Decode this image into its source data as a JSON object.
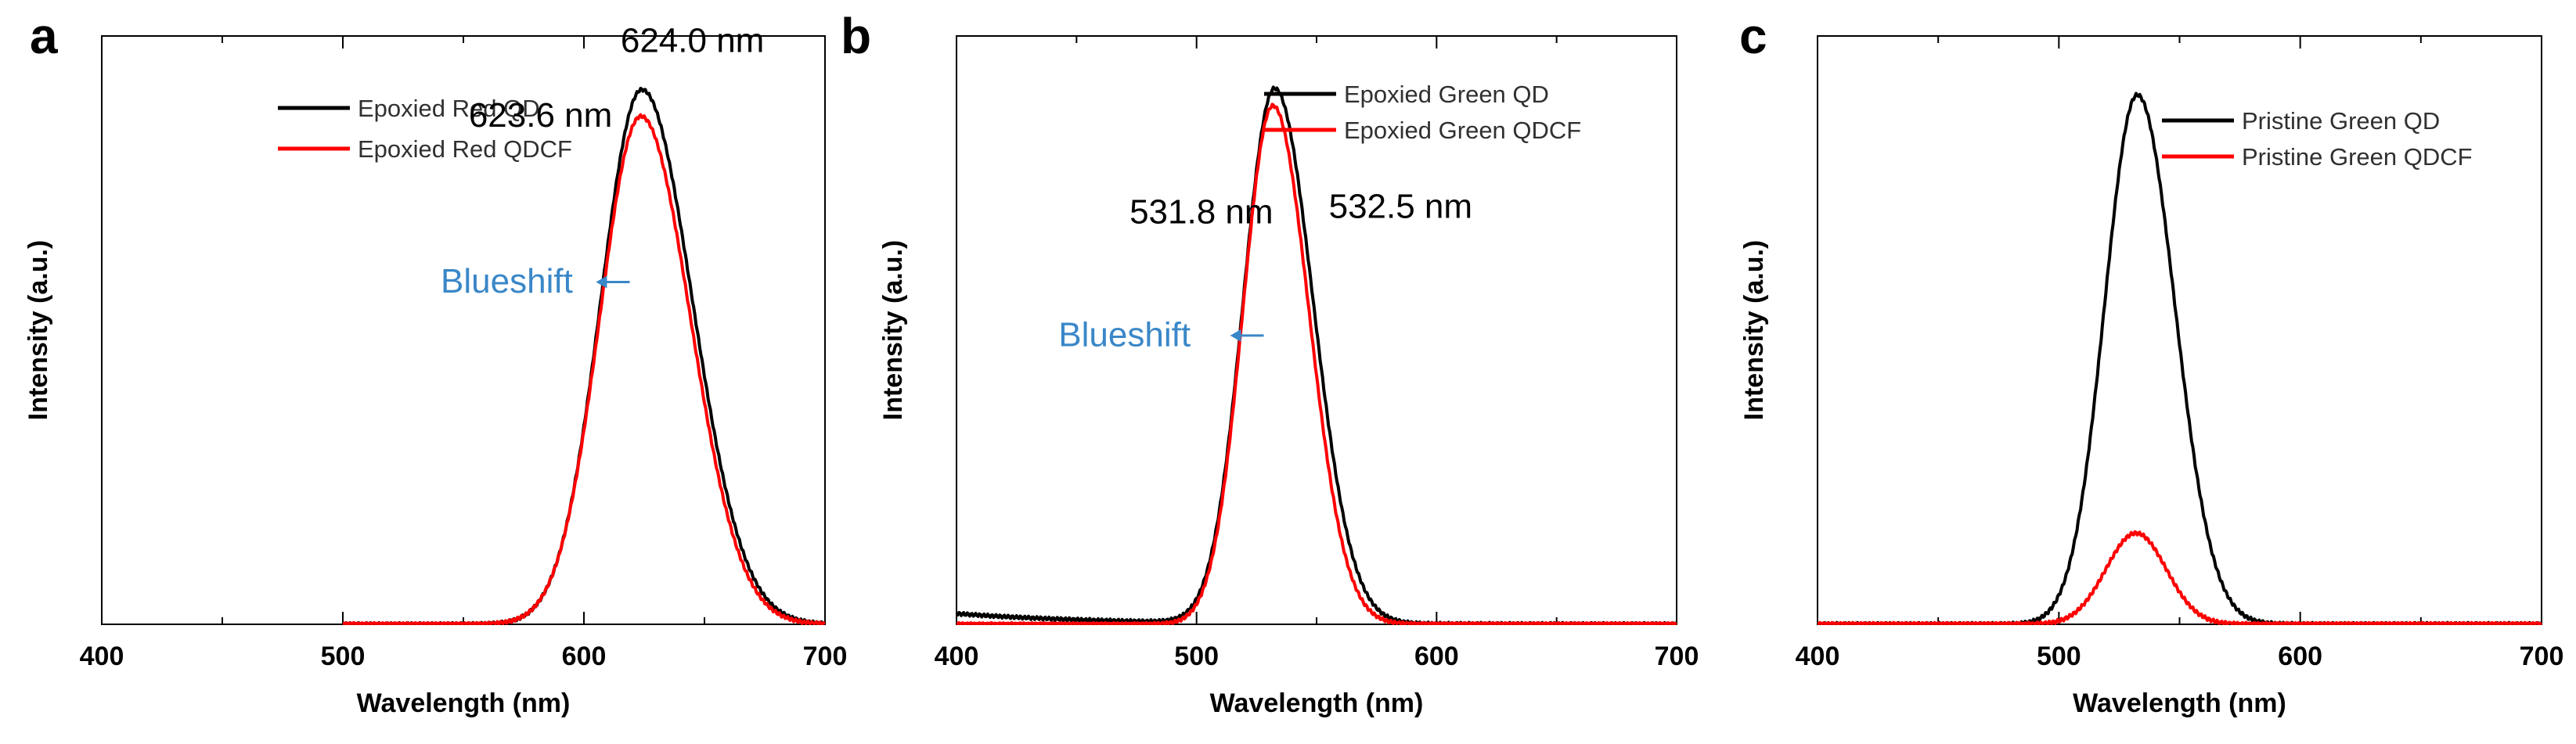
{
  "chart_data": [
    {
      "type": "line",
      "panel": "a",
      "xlabel": "Wavelength (nm)",
      "ylabel": "Intensity (a.u.)",
      "xlim": [
        400,
        700
      ],
      "xticks": [
        "400",
        "500",
        "600",
        "700"
      ],
      "ylim": [
        0,
        1.1
      ],
      "series": [
        {
          "name": "Epoxied Red QD",
          "color": "#000000",
          "peak_nm": 624.0,
          "peak": 1.0,
          "sigma_left": 17,
          "sigma_right": 21,
          "baseline": 0.0,
          "x_start": 500
        },
        {
          "name": "Epoxied Red QDCF",
          "color": "#ff0000",
          "peak_nm": 623.6,
          "peak": 0.95,
          "sigma_left": 17,
          "sigma_right": 20.5,
          "baseline": 0.0,
          "x_start": 500
        }
      ],
      "annotations": [
        {
          "text": "624.0 nm",
          "x_nm": 645,
          "y": 1.07
        },
        {
          "text": "623.6 nm",
          "x_nm": 582,
          "y": 0.93
        },
        {
          "text": "Blueshift",
          "x_nm": 568,
          "y": 0.62,
          "style": "blue"
        }
      ],
      "arrow": {
        "from_nm": 619,
        "to_nm": 605,
        "y": 0.64,
        "color": "#3a87c8"
      }
    },
    {
      "type": "line",
      "panel": "b",
      "xlabel": "Wavelength (nm)",
      "ylabel": "Intensity (a.u.)",
      "xlim": [
        400,
        700
      ],
      "xticks": [
        "400",
        "500",
        "600",
        "700"
      ],
      "ylim": [
        0,
        1.1
      ],
      "series": [
        {
          "name": "Epoxied Green QD",
          "color": "#000000",
          "peak_nm": 532.5,
          "peak": 1.0,
          "sigma_left": 13,
          "sigma_right": 16,
          "baseline": 0.02,
          "x_start": 400
        },
        {
          "name": "Epoxied Green QDCF",
          "color": "#ff0000",
          "peak_nm": 531.8,
          "peak": 0.97,
          "sigma_left": 12.5,
          "sigma_right": 15,
          "baseline": 0.0,
          "x_start": 400
        }
      ],
      "annotations": [
        {
          "text": "531.8 nm",
          "x_nm": 502,
          "y": 0.75
        },
        {
          "text": "532.5 nm",
          "x_nm": 585,
          "y": 0.76
        },
        {
          "text": "Blueshift",
          "x_nm": 470,
          "y": 0.52,
          "style": "blue"
        }
      ],
      "arrow": {
        "from_nm": 528,
        "to_nm": 514,
        "y": 0.54,
        "color": "#3a87c8"
      }
    },
    {
      "type": "line",
      "panel": "c",
      "xlabel": "Wavelength (nm)",
      "ylabel": "Intensity (a.u.)",
      "xlim": [
        400,
        700
      ],
      "xticks": [
        "400",
        "500",
        "600",
        "700"
      ],
      "ylim": [
        0,
        1.0
      ],
      "series": [
        {
          "name": "Pristine Green QD",
          "color": "#000000",
          "peak_nm": 532.5,
          "peak": 0.9,
          "sigma_left": 13.5,
          "sigma_right": 15.5,
          "baseline": 0.0,
          "x_start": 400
        },
        {
          "name": "Pristine Green QDCF",
          "color": "#ff0000",
          "peak_nm": 532,
          "peak": 0.155,
          "sigma_left": 12.5,
          "sigma_right": 12.5,
          "baseline": 0.0,
          "x_start": 400
        }
      ],
      "annotations": [],
      "arrow": null
    }
  ]
}
